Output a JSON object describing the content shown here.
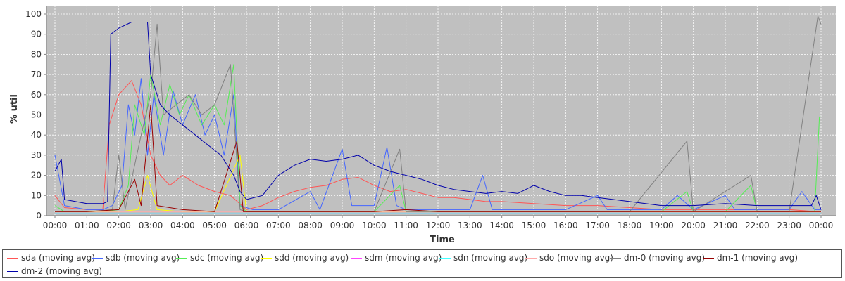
{
  "chart_data": {
    "type": "line",
    "title": "",
    "xlabel": "Time",
    "ylabel": "% util",
    "xlim": [
      "00:00",
      "24:00"
    ],
    "ylim": [
      0,
      100
    ],
    "grid": true,
    "legend_position": "bottom",
    "plot_background": "#c0c0c0",
    "x_ticks": [
      "00:00",
      "01:00",
      "02:00",
      "03:00",
      "04:00",
      "05:00",
      "06:00",
      "07:00",
      "08:00",
      "09:00",
      "10:00",
      "11:00",
      "12:00",
      "13:00",
      "14:00",
      "15:00",
      "16:00",
      "17:00",
      "18:00",
      "19:00",
      "20:00",
      "21:00",
      "22:00",
      "23:00",
      "00:00"
    ],
    "y_ticks": [
      0,
      10,
      20,
      30,
      40,
      50,
      60,
      70,
      80,
      90,
      100
    ],
    "series": [
      {
        "name": "sda (moving avg)",
        "color": "#ff5555",
        "points": [
          [
            0.0,
            10
          ],
          [
            0.3,
            4
          ],
          [
            1.0,
            3
          ],
          [
            1.5,
            3
          ],
          [
            1.7,
            45
          ],
          [
            2.0,
            60
          ],
          [
            2.4,
            67
          ],
          [
            2.7,
            55
          ],
          [
            3.0,
            30
          ],
          [
            3.3,
            20
          ],
          [
            3.6,
            15
          ],
          [
            4.0,
            20
          ],
          [
            4.5,
            15
          ],
          [
            5.0,
            12
          ],
          [
            5.5,
            10
          ],
          [
            6.0,
            3
          ],
          [
            6.5,
            5
          ],
          [
            7.0,
            9
          ],
          [
            7.5,
            12
          ],
          [
            8.0,
            14
          ],
          [
            8.5,
            15
          ],
          [
            9.0,
            18
          ],
          [
            9.5,
            19
          ],
          [
            10.0,
            15
          ],
          [
            10.5,
            12
          ],
          [
            11.0,
            13
          ],
          [
            11.5,
            11
          ],
          [
            12.0,
            9
          ],
          [
            12.5,
            9
          ],
          [
            13.0,
            8
          ],
          [
            13.5,
            7
          ],
          [
            14.0,
            7
          ],
          [
            15.0,
            6
          ],
          [
            16.0,
            5
          ],
          [
            17.0,
            5
          ],
          [
            18.0,
            4
          ],
          [
            19.0,
            3
          ],
          [
            20.0,
            3
          ],
          [
            21.0,
            3
          ],
          [
            22.0,
            3
          ],
          [
            23.0,
            3
          ],
          [
            23.9,
            2
          ],
          [
            24.0,
            2
          ]
        ]
      },
      {
        "name": "sdb (moving avg)",
        "color": "#4466ff",
        "points": [
          [
            0.0,
            30
          ],
          [
            0.3,
            5
          ],
          [
            1.0,
            3
          ],
          [
            1.5,
            3
          ],
          [
            1.8,
            5
          ],
          [
            2.1,
            15
          ],
          [
            2.3,
            55
          ],
          [
            2.5,
            40
          ],
          [
            2.7,
            68
          ],
          [
            2.9,
            30
          ],
          [
            3.1,
            60
          ],
          [
            3.4,
            30
          ],
          [
            3.7,
            62
          ],
          [
            4.0,
            45
          ],
          [
            4.4,
            60
          ],
          [
            4.7,
            40
          ],
          [
            5.0,
            50
          ],
          [
            5.3,
            30
          ],
          [
            5.6,
            60
          ],
          [
            5.8,
            5
          ],
          [
            6.2,
            3
          ],
          [
            7.0,
            3
          ],
          [
            8.0,
            12
          ],
          [
            8.3,
            3
          ],
          [
            9.0,
            33
          ],
          [
            9.3,
            5
          ],
          [
            10.0,
            5
          ],
          [
            10.4,
            34
          ],
          [
            10.7,
            5
          ],
          [
            11.0,
            3
          ],
          [
            12.0,
            3
          ],
          [
            13.0,
            3
          ],
          [
            13.4,
            20
          ],
          [
            13.7,
            3
          ],
          [
            14.0,
            3
          ],
          [
            15.0,
            3
          ],
          [
            16.0,
            3
          ],
          [
            17.0,
            10
          ],
          [
            17.3,
            3
          ],
          [
            18.0,
            3
          ],
          [
            19.0,
            3
          ],
          [
            19.5,
            10
          ],
          [
            20.0,
            3
          ],
          [
            21.0,
            10
          ],
          [
            21.3,
            3
          ],
          [
            22.0,
            3
          ],
          [
            23.0,
            3
          ],
          [
            23.4,
            12
          ],
          [
            23.8,
            3
          ],
          [
            24.0,
            3
          ]
        ]
      },
      {
        "name": "sdc (moving avg)",
        "color": "#55ee55",
        "points": [
          [
            0.0,
            5
          ],
          [
            0.3,
            2
          ],
          [
            1.0,
            2
          ],
          [
            1.5,
            2
          ],
          [
            2.0,
            3
          ],
          [
            2.3,
            15
          ],
          [
            2.5,
            55
          ],
          [
            2.8,
            40
          ],
          [
            3.0,
            70
          ],
          [
            3.3,
            45
          ],
          [
            3.6,
            65
          ],
          [
            3.9,
            50
          ],
          [
            4.2,
            60
          ],
          [
            4.6,
            45
          ],
          [
            5.0,
            55
          ],
          [
            5.3,
            45
          ],
          [
            5.6,
            75
          ],
          [
            5.8,
            5
          ],
          [
            6.0,
            2
          ],
          [
            7.0,
            2
          ],
          [
            8.0,
            2
          ],
          [
            9.0,
            2
          ],
          [
            10.0,
            2
          ],
          [
            10.8,
            15
          ],
          [
            11.0,
            2
          ],
          [
            12.0,
            2
          ],
          [
            13.0,
            2
          ],
          [
            14.0,
            2
          ],
          [
            15.0,
            2
          ],
          [
            16.0,
            2
          ],
          [
            17.0,
            2
          ],
          [
            18.0,
            2
          ],
          [
            19.0,
            2
          ],
          [
            19.8,
            12
          ],
          [
            20.0,
            2
          ],
          [
            21.0,
            2
          ],
          [
            21.8,
            15
          ],
          [
            22.0,
            2
          ],
          [
            23.0,
            2
          ],
          [
            23.8,
            2
          ],
          [
            23.95,
            49
          ],
          [
            24.0,
            49
          ]
        ]
      },
      {
        "name": "sdd (moving avg)",
        "color": "#ffff00",
        "points": [
          [
            0.0,
            2
          ],
          [
            1.0,
            2
          ],
          [
            2.0,
            2
          ],
          [
            2.6,
            3
          ],
          [
            2.9,
            20
          ],
          [
            3.2,
            3
          ],
          [
            4.0,
            2
          ],
          [
            5.0,
            2
          ],
          [
            5.8,
            30
          ],
          [
            6.0,
            2
          ],
          [
            8.0,
            2
          ],
          [
            10.0,
            2
          ],
          [
            12.0,
            2
          ],
          [
            14.0,
            2
          ],
          [
            16.0,
            2
          ],
          [
            18.0,
            2
          ],
          [
            20.0,
            2
          ],
          [
            22.0,
            2
          ],
          [
            24.0,
            2
          ]
        ]
      },
      {
        "name": "sdm (moving avg)",
        "color": "#ff44ff",
        "points": [
          [
            0.0,
            1
          ],
          [
            6.0,
            1
          ],
          [
            12.0,
            1
          ],
          [
            18.0,
            1
          ],
          [
            24.0,
            1
          ]
        ]
      },
      {
        "name": "sdn (moving avg)",
        "color": "#44ffff",
        "points": [
          [
            0.0,
            1
          ],
          [
            6.0,
            1
          ],
          [
            12.0,
            1
          ],
          [
            18.0,
            1
          ],
          [
            24.0,
            1
          ]
        ]
      },
      {
        "name": "sdo (moving avg)",
        "color": "#ffaaaa",
        "points": [
          [
            0.0,
            2
          ],
          [
            6.0,
            2
          ],
          [
            12.0,
            2
          ],
          [
            18.0,
            2
          ],
          [
            24.0,
            2
          ]
        ]
      },
      {
        "name": "dm-0 (moving avg)",
        "color": "#808080",
        "points": [
          [
            0.0,
            2
          ],
          [
            1.0,
            2
          ],
          [
            1.8,
            3
          ],
          [
            2.0,
            30
          ],
          [
            2.2,
            3
          ],
          [
            2.7,
            40
          ],
          [
            3.0,
            60
          ],
          [
            3.2,
            95
          ],
          [
            3.4,
            50
          ],
          [
            3.8,
            55
          ],
          [
            4.2,
            60
          ],
          [
            4.6,
            50
          ],
          [
            5.0,
            55
          ],
          [
            5.5,
            75
          ],
          [
            5.8,
            3
          ],
          [
            6.0,
            2
          ],
          [
            8.0,
            2
          ],
          [
            10.0,
            2
          ],
          [
            10.8,
            33
          ],
          [
            11.0,
            2
          ],
          [
            12.0,
            2
          ],
          [
            14.0,
            2
          ],
          [
            16.0,
            2
          ],
          [
            18.0,
            2
          ],
          [
            19.8,
            37
          ],
          [
            20.0,
            2
          ],
          [
            21.8,
            20
          ],
          [
            22.0,
            2
          ],
          [
            23.0,
            2
          ],
          [
            23.9,
            99
          ],
          [
            24.0,
            95
          ]
        ]
      },
      {
        "name": "dm-1 (moving avg)",
        "color": "#990000",
        "points": [
          [
            0.0,
            2
          ],
          [
            1.0,
            2
          ],
          [
            2.0,
            3
          ],
          [
            2.5,
            18
          ],
          [
            2.7,
            5
          ],
          [
            3.0,
            55
          ],
          [
            3.2,
            5
          ],
          [
            4.0,
            3
          ],
          [
            5.0,
            2
          ],
          [
            5.7,
            37
          ],
          [
            5.9,
            2
          ],
          [
            7.0,
            2
          ],
          [
            8.0,
            2
          ],
          [
            9.0,
            2
          ],
          [
            10.0,
            2
          ],
          [
            11.0,
            3
          ],
          [
            12.0,
            2
          ],
          [
            13.0,
            2
          ],
          [
            14.0,
            2
          ],
          [
            15.0,
            2
          ],
          [
            16.0,
            2
          ],
          [
            17.0,
            2
          ],
          [
            18.0,
            2
          ],
          [
            19.0,
            2
          ],
          [
            20.0,
            2
          ],
          [
            21.0,
            2
          ],
          [
            22.0,
            2
          ],
          [
            23.0,
            2
          ],
          [
            24.0,
            2
          ]
        ]
      },
      {
        "name": "dm-2 (moving avg)",
        "color": "#0000aa",
        "points": [
          [
            0.0,
            22
          ],
          [
            0.2,
            28
          ],
          [
            0.3,
            8
          ],
          [
            1.0,
            6
          ],
          [
            1.5,
            6
          ],
          [
            1.65,
            7
          ],
          [
            1.75,
            90
          ],
          [
            2.0,
            93
          ],
          [
            2.4,
            96
          ],
          [
            2.9,
            96
          ],
          [
            3.0,
            70
          ],
          [
            3.3,
            55
          ],
          [
            3.6,
            50
          ],
          [
            4.0,
            45
          ],
          [
            4.4,
            40
          ],
          [
            4.8,
            35
          ],
          [
            5.2,
            30
          ],
          [
            5.6,
            20
          ],
          [
            5.8,
            12
          ],
          [
            6.0,
            8
          ],
          [
            6.5,
            10
          ],
          [
            7.0,
            20
          ],
          [
            7.5,
            25
          ],
          [
            8.0,
            28
          ],
          [
            8.5,
            27
          ],
          [
            9.0,
            28
          ],
          [
            9.5,
            30
          ],
          [
            10.0,
            25
          ],
          [
            10.5,
            22
          ],
          [
            11.0,
            20
          ],
          [
            11.5,
            18
          ],
          [
            12.0,
            15
          ],
          [
            12.5,
            13
          ],
          [
            13.0,
            12
          ],
          [
            13.5,
            11
          ],
          [
            14.0,
            12
          ],
          [
            14.5,
            11
          ],
          [
            15.0,
            15
          ],
          [
            15.5,
            12
          ],
          [
            16.0,
            10
          ],
          [
            16.5,
            10
          ],
          [
            17.0,
            9
          ],
          [
            17.5,
            8
          ],
          [
            18.0,
            7
          ],
          [
            18.5,
            6
          ],
          [
            19.0,
            5
          ],
          [
            20.0,
            5
          ],
          [
            21.0,
            6
          ],
          [
            22.0,
            5
          ],
          [
            23.0,
            5
          ],
          [
            23.7,
            5
          ],
          [
            23.85,
            10
          ],
          [
            24.0,
            3
          ]
        ]
      }
    ]
  }
}
